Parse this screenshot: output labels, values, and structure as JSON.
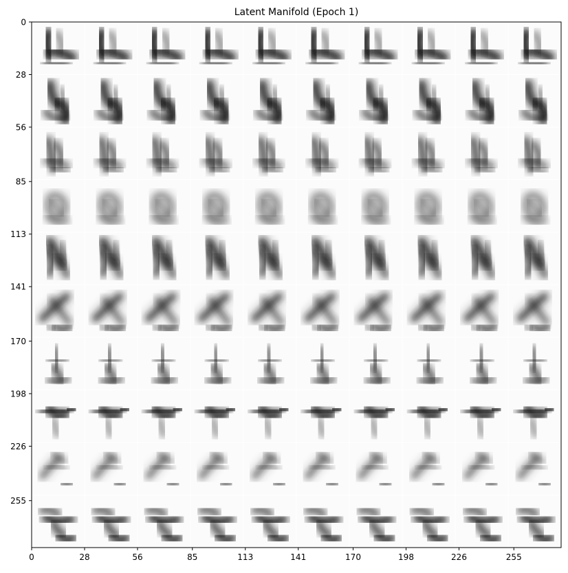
{
  "chart_data": {
    "type": "heatmap",
    "title": "Latent Manifold (Epoch 1)",
    "xlabel": "",
    "ylabel": "",
    "colormap": "gray_r",
    "grid": false,
    "image_extent": [
      0,
      280
    ],
    "grid_shape": [
      10,
      10
    ],
    "tile_size": 28,
    "x_ticks": [
      0,
      28,
      56,
      85,
      113,
      141,
      170,
      198,
      226,
      255
    ],
    "x_tick_labels": [
      "0",
      "28",
      "56",
      "85",
      "113",
      "141",
      "170",
      "198",
      "226",
      "255"
    ],
    "y_ticks": [
      0,
      28,
      56,
      85,
      113,
      141,
      170,
      198,
      226,
      255
    ],
    "y_tick_labels": [
      "0",
      "28",
      "56",
      "85",
      "113",
      "141",
      "170",
      "198",
      "226",
      "255"
    ],
    "row_patterns": [
      "stroke-cluster",
      "dense-blob",
      "mottled",
      "faint-ring",
      "diagonal-stroke",
      "cross-stroke",
      "center-blob",
      "horizontal-bar",
      "faint-diagonal",
      "dark-scribble"
    ],
    "colors": {
      "ink": "#1a1a1a",
      "background": "#ffffff",
      "axis": "#000000"
    }
  }
}
